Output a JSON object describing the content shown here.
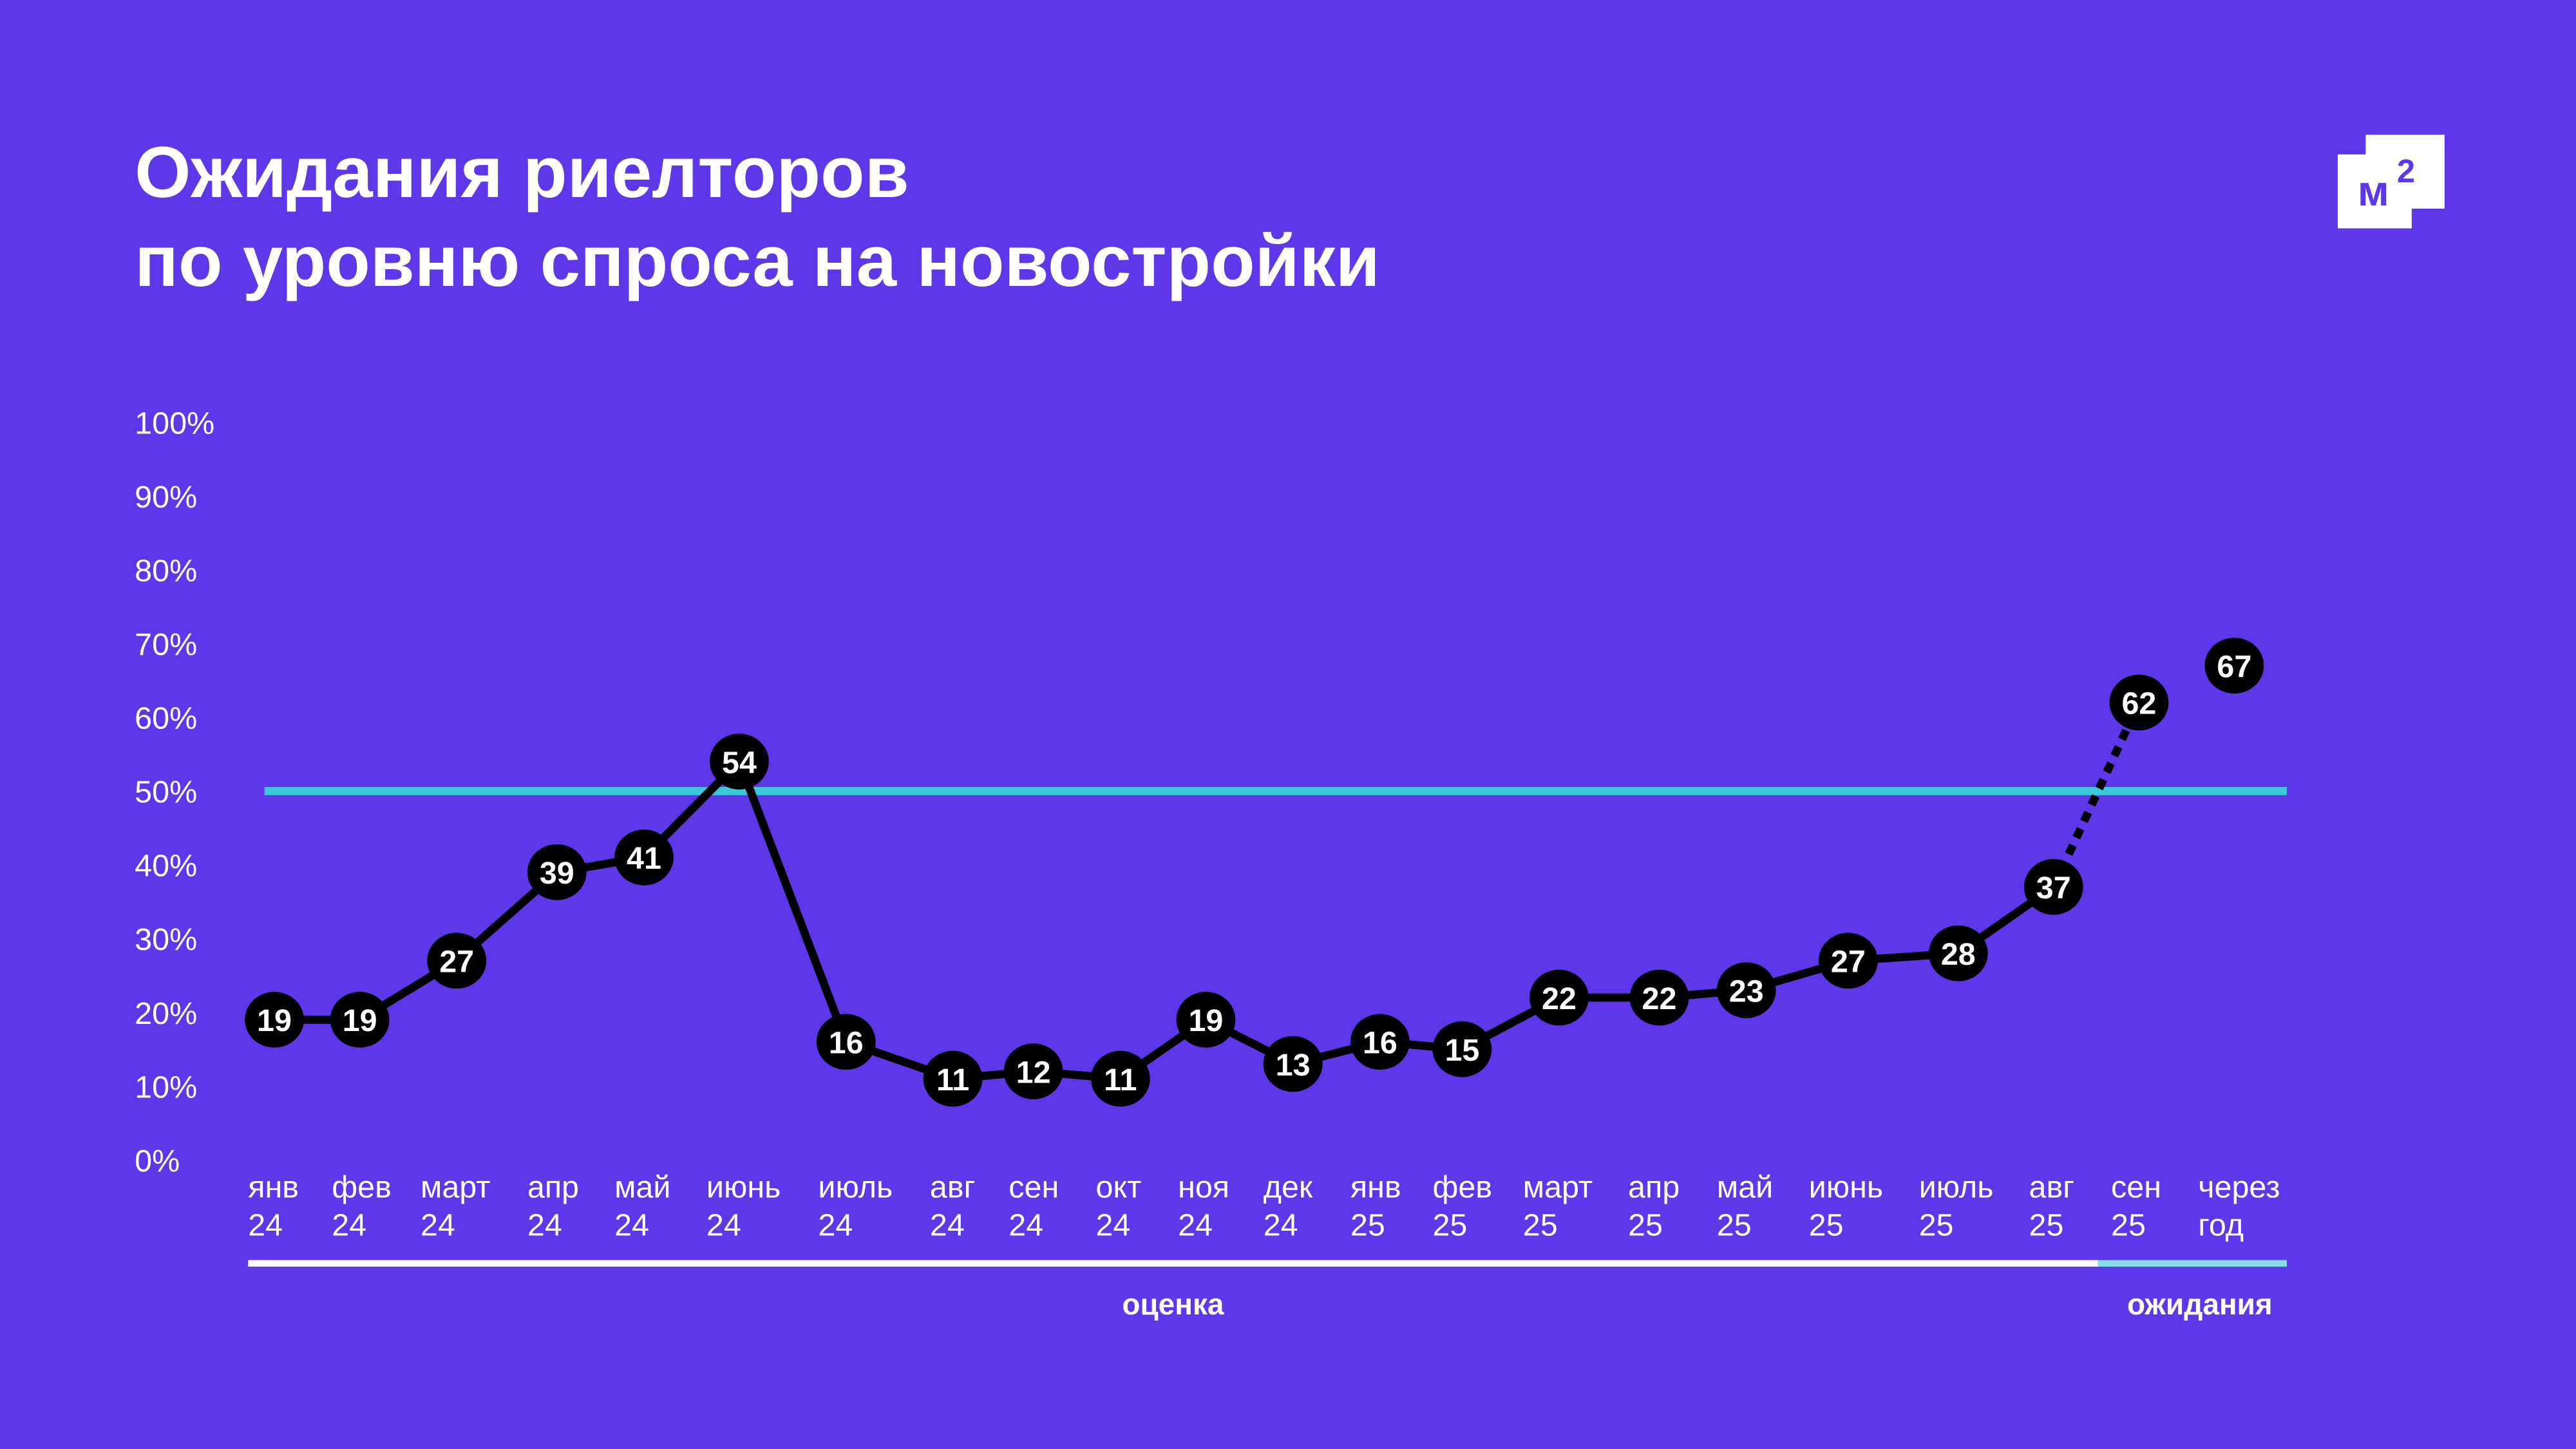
{
  "chart_data": {
    "type": "line",
    "title": [
      "Ожидания риелторов",
      "по уровню спроса на новостройки"
    ],
    "ylim": [
      0,
      100
    ],
    "yticks": [
      "0%",
      "10%",
      "20%",
      "30%",
      "40%",
      "50%",
      "60%",
      "70%",
      "80%",
      "90%",
      "100%"
    ],
    "categories": [
      [
        "янв",
        "24"
      ],
      [
        "фев",
        "24"
      ],
      [
        "март",
        "24"
      ],
      [
        "апр",
        "24"
      ],
      [
        "май",
        "24"
      ],
      [
        "июнь",
        "24"
      ],
      [
        "июль",
        "24"
      ],
      [
        "авг",
        "24"
      ],
      [
        "сен",
        "24"
      ],
      [
        "окт",
        "24"
      ],
      [
        "ноя",
        "24"
      ],
      [
        "дек",
        "24"
      ],
      [
        "янв",
        "25"
      ],
      [
        "фев",
        "25"
      ],
      [
        "март",
        "25"
      ],
      [
        "апр",
        "25"
      ],
      [
        "май",
        "25"
      ],
      [
        "июнь",
        "25"
      ],
      [
        "июль",
        "25"
      ],
      [
        "авг",
        "25"
      ],
      [
        "сен",
        "25"
      ],
      [
        "через",
        "год"
      ]
    ],
    "values": [
      19,
      19,
      27,
      39,
      41,
      54,
      16,
      11,
      12,
      11,
      19,
      13,
      16,
      15,
      22,
      22,
      23,
      27,
      28,
      37,
      62,
      67
    ],
    "reference_line": {
      "value": 50,
      "color": "#3cc8d8"
    },
    "segments": [
      {
        "label": "оценка",
        "from": 0,
        "to": 19,
        "color": "#ffffff"
      },
      {
        "label": "ожидания",
        "from": 20,
        "to": 21,
        "color": "#7fe0e6"
      }
    ],
    "line_color": "#000000",
    "projection_style": "dashed",
    "grid": false
  },
  "logo": {
    "text": "м",
    "superscript": "2"
  },
  "colors": {
    "background": "#5e38e8",
    "accent": "#3cc8d8",
    "marker": "#000000"
  }
}
